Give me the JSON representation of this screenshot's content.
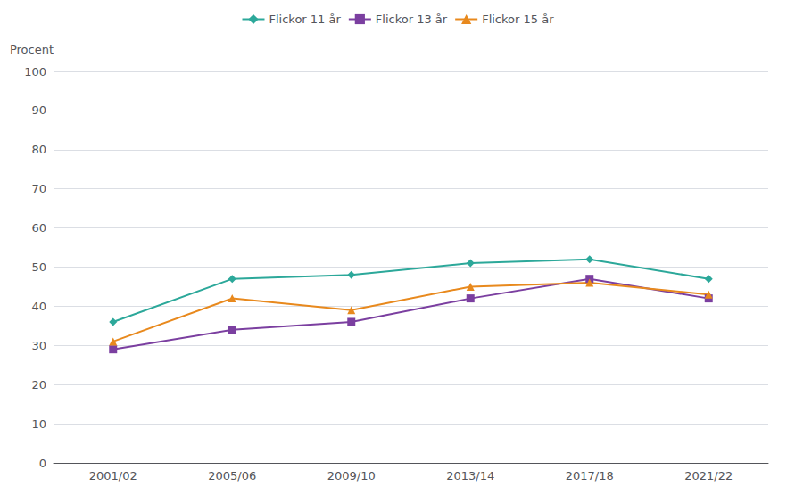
{
  "chart_data": {
    "type": "line",
    "ylabel": "Procent",
    "categories": [
      "2001/02",
      "2005/06",
      "2009/10",
      "2013/14",
      "2017/18",
      "2021/22"
    ],
    "series": [
      {
        "name": "Flickor 11 år",
        "color": "#2ca89a",
        "marker": "diamond",
        "values": [
          36,
          47,
          48,
          51,
          52,
          47
        ]
      },
      {
        "name": "Flickor 13 år",
        "color": "#7b3fa0",
        "marker": "square",
        "values": [
          29,
          34,
          36,
          42,
          47,
          42
        ]
      },
      {
        "name": "Flickor 15 år",
        "color": "#e8891d",
        "marker": "triangle",
        "values": [
          31,
          42,
          39,
          45,
          46,
          43
        ]
      }
    ],
    "ylim": [
      0,
      100
    ],
    "yticks": [
      0,
      10,
      20,
      30,
      40,
      50,
      60,
      70,
      80,
      90,
      100
    ],
    "grid": true,
    "legend": "top"
  }
}
